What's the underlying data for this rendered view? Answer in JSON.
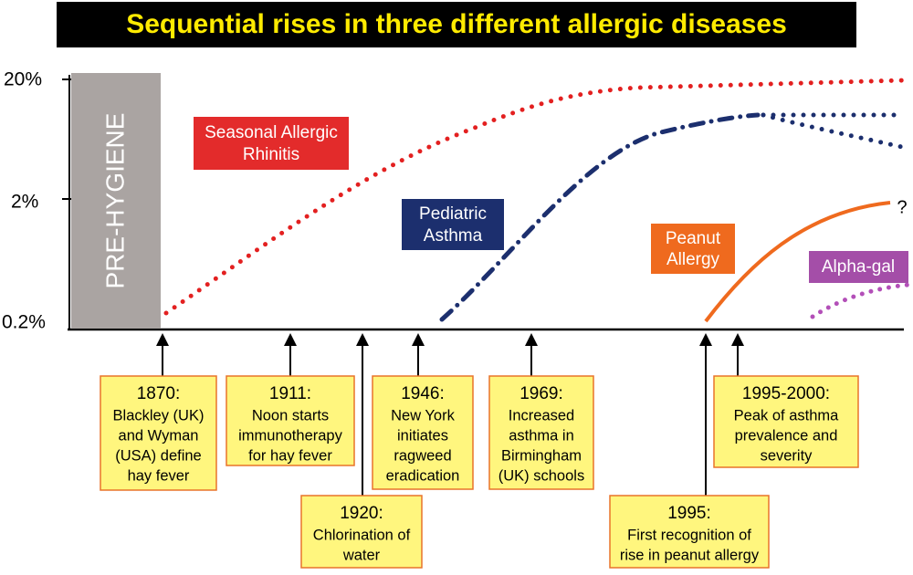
{
  "title": "Sequential rises in three different allergic diseases",
  "y_axis_ticks": [
    "20%",
    "2%",
    "0.2%"
  ],
  "pre_hygiene": "PRE-HYGIENE",
  "diseases": [
    {
      "lines": [
        "Seasonal Allergic",
        "Rhinitis"
      ]
    },
    {
      "lines": [
        "Pediatric",
        "Asthma"
      ]
    },
    {
      "lines": [
        "Peanut",
        "Allergy"
      ]
    },
    {
      "lines": [
        "Alpha-gal"
      ]
    }
  ],
  "unknown_mark": "?",
  "events": [
    {
      "heading": "1870:",
      "lines": [
        "Blackley (UK)",
        "and Wyman",
        "(USA) define",
        "hay fever"
      ]
    },
    {
      "heading": "1911:",
      "lines": [
        "Noon starts",
        "immunotherapy",
        "for hay fever"
      ]
    },
    {
      "heading": "1920:",
      "lines": [
        "Chlorination of",
        "water"
      ]
    },
    {
      "heading": "1946:",
      "lines": [
        "New York",
        "initiates",
        "ragweed",
        "eradication"
      ]
    },
    {
      "heading": "1969:",
      "lines": [
        "Increased",
        "asthma in",
        "Birmingham",
        "(UK) schools"
      ]
    },
    {
      "heading": "1995:",
      "lines": [
        "First recognition of",
        "rise in peanut allergy"
      ]
    },
    {
      "heading": "1995-2000:",
      "lines": [
        "Peak of asthma",
        "prevalence and",
        "severity"
      ]
    }
  ]
}
